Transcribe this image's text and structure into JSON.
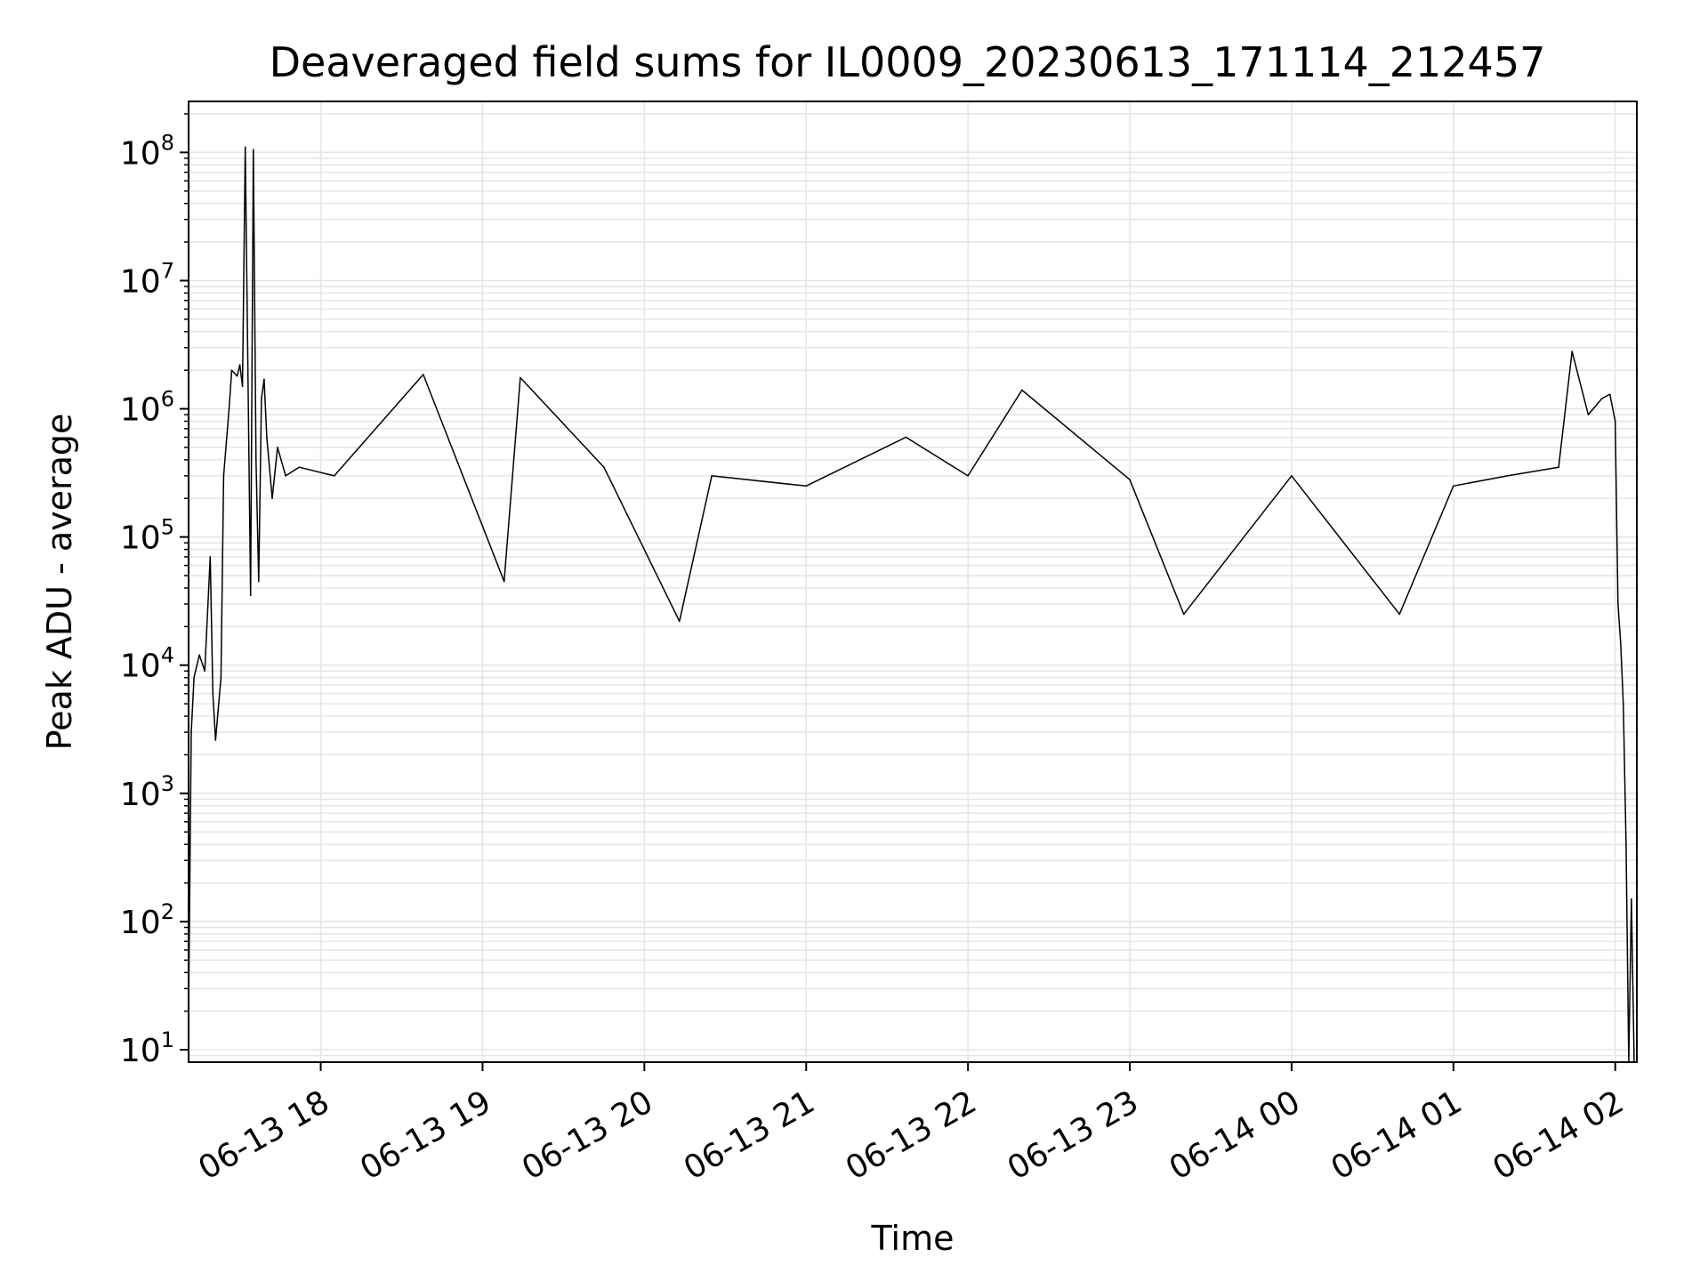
{
  "chart_data": {
    "type": "line",
    "title": "Deaveraged field sums for IL0009_20230613_171114_212457",
    "xlabel": "Time",
    "ylabel": "Peak ADU - average",
    "yscale": "log",
    "grid": true,
    "line_color": "#000000",
    "grid_color": "#e6e6e6",
    "xlim": [
      "2023-06-13 17:11",
      "2023-06-14 02:08"
    ],
    "ylim": [
      8,
      250000000
    ],
    "x_ticks": [
      "06-13 18",
      "06-13 19",
      "06-13 20",
      "06-13 21",
      "06-13 22",
      "06-13 23",
      "06-14 00",
      "06-14 01",
      "06-14 02"
    ],
    "y_ticks": [
      {
        "base": "10",
        "exp": "1"
      },
      {
        "base": "10",
        "exp": "2"
      },
      {
        "base": "10",
        "exp": "3"
      },
      {
        "base": "10",
        "exp": "4"
      },
      {
        "base": "10",
        "exp": "5"
      },
      {
        "base": "10",
        "exp": "6"
      },
      {
        "base": "10",
        "exp": "7"
      },
      {
        "base": "10",
        "exp": "8"
      }
    ],
    "series": [
      {
        "x": [
          "2023-06-13 17:11",
          "2023-06-13 17:12",
          "2023-06-13 17:13",
          "2023-06-13 17:15",
          "2023-06-13 17:17",
          "2023-06-13 17:19",
          "2023-06-13 17:20",
          "2023-06-13 17:21",
          "2023-06-13 17:23",
          "2023-06-13 17:24",
          "2023-06-13 17:26",
          "2023-06-13 17:27",
          "2023-06-13 17:29",
          "2023-06-13 17:30",
          "2023-06-13 17:31",
          "2023-06-13 17:32",
          "2023-06-13 17:34",
          "2023-06-13 17:35",
          "2023-06-13 17:36",
          "2023-06-13 17:37",
          "2023-06-13 17:38",
          "2023-06-13 17:39",
          "2023-06-13 17:40",
          "2023-06-13 17:42",
          "2023-06-13 17:44",
          "2023-06-13 17:47",
          "2023-06-13 17:52",
          "2023-06-13 18:05",
          "2023-06-13 18:38",
          "2023-06-13 19:08",
          "2023-06-13 19:14",
          "2023-06-13 19:45",
          "2023-06-13 20:13",
          "2023-06-13 20:25",
          "2023-06-13 21:00",
          "2023-06-13 21:37",
          "2023-06-13 22:00",
          "2023-06-13 22:20",
          "2023-06-13 23:00",
          "2023-06-13 23:20",
          "2023-06-14 00:00",
          "2023-06-14 00:40",
          "2023-06-14 01:00",
          "2023-06-14 01:20",
          "2023-06-14 01:39",
          "2023-06-14 01:44",
          "2023-06-14 01:50",
          "2023-06-14 01:55",
          "2023-06-14 01:58",
          "2023-06-14 02:00",
          "2023-06-14 02:01",
          "2023-06-14 02:02",
          "2023-06-14 02:03",
          "2023-06-14 02:04",
          "2023-06-14 02:05",
          "2023-06-14 02:06",
          "2023-06-14 02:07"
        ],
        "y": [
          20,
          3000,
          8000,
          12000,
          9000,
          70000,
          6000,
          2600,
          8000,
          300000,
          1000000,
          2000000,
          1800000,
          2200000,
          1500000,
          110000000,
          35000,
          105000000,
          400000,
          45000,
          1200000,
          1700000,
          600000,
          200000,
          500000,
          300000,
          350000,
          300000,
          1850000,
          45000,
          1750000,
          350000,
          22000,
          300000,
          250000,
          600000,
          300000,
          1400000,
          280000,
          25000,
          300000,
          25000,
          250000,
          300000,
          350000,
          2800000,
          900000,
          1200000,
          1300000,
          800000,
          30000,
          15000,
          5000,
          400,
          8,
          150,
          8
        ]
      }
    ]
  }
}
